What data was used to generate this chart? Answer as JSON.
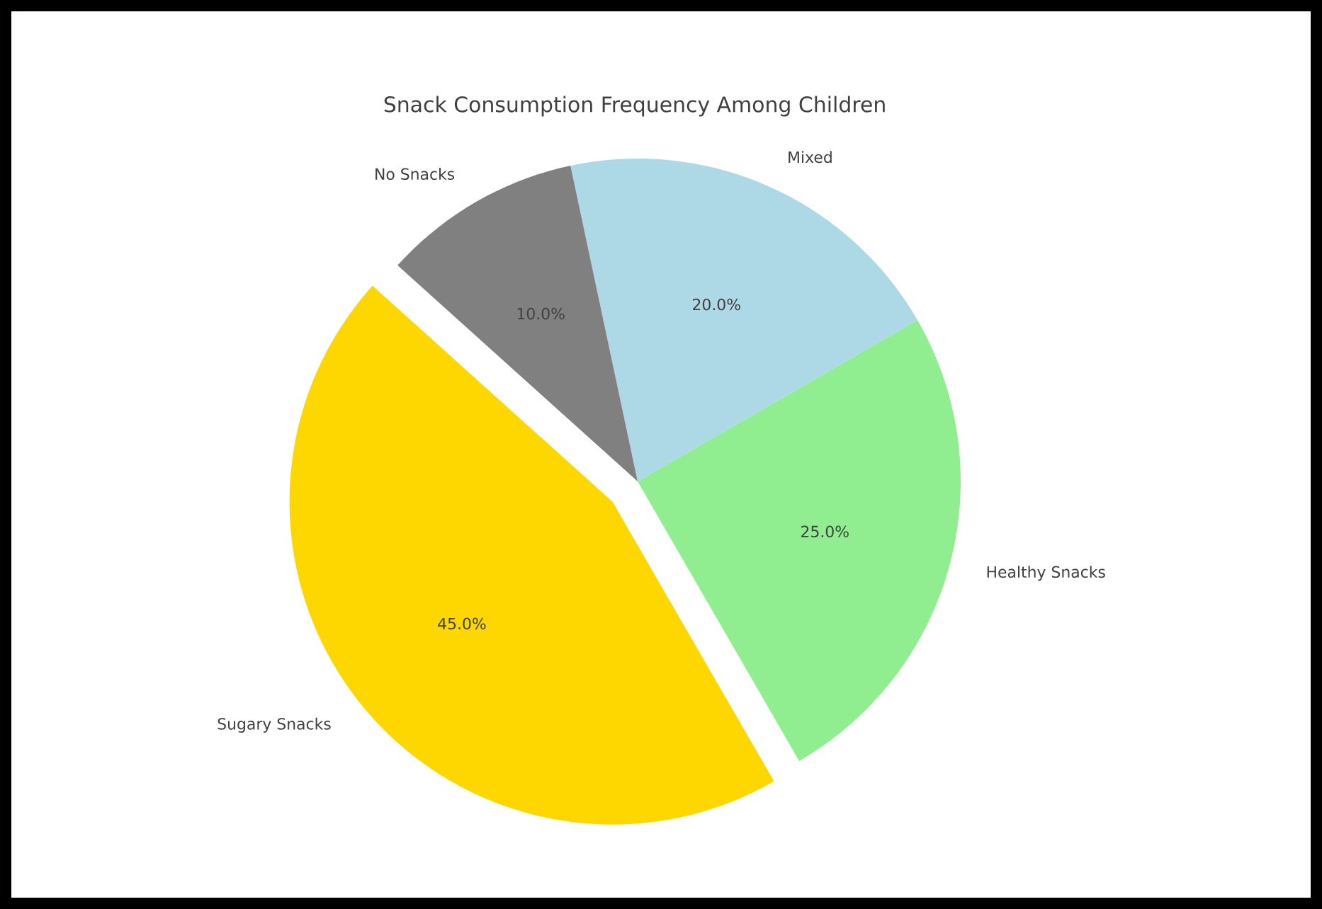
{
  "chart_data": {
    "type": "pie",
    "title": "Snack Consumption Frequency Among Children",
    "categories": [
      "Sugary Snacks",
      "Healthy Snacks",
      "Mixed",
      "No Snacks"
    ],
    "values": [
      45,
      25,
      20,
      10
    ],
    "colors": [
      "#ffd700",
      "#90ee90",
      "#add8e6",
      "#808080"
    ],
    "value_labels": [
      "45.0%",
      "25.0%",
      "20.0%",
      "10.0%"
    ]
  }
}
